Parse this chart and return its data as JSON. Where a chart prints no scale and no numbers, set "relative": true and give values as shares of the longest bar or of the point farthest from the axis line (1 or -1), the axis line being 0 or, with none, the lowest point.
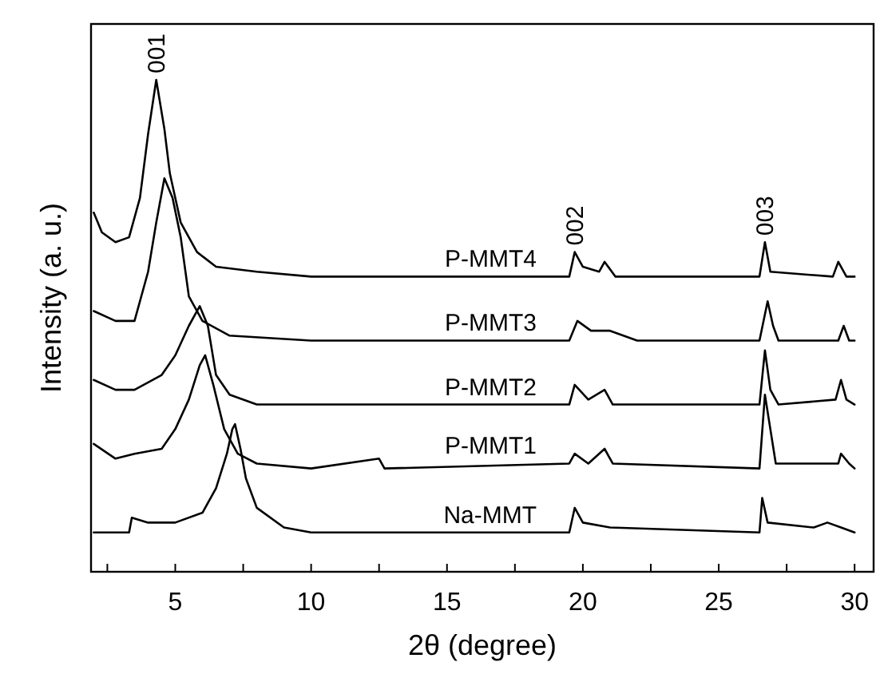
{
  "chart_data": {
    "type": "line",
    "relative": true,
    "xlabel": "2θ (degree)",
    "ylabel": "Intensity (a. u.)",
    "xlim": [
      1.9,
      30.7
    ],
    "xticks": [
      {
        "value": 2.5,
        "label": null
      },
      5,
      {
        "value": 7.5,
        "label": null
      },
      10,
      {
        "value": 12.5,
        "label": null
      },
      15,
      {
        "value": 17.5,
        "label": null
      },
      20,
      {
        "value": 22.5,
        "label": null
      },
      25,
      {
        "value": 27.5,
        "label": null
      },
      30
    ],
    "tick_labels": "x",
    "legend": false,
    "grid": false,
    "marker": "none",
    "line_style": "solid",
    "series": [
      {
        "name": "P-MMT4",
        "color": "#000000",
        "x": [
          2.0,
          2.3,
          2.8,
          3.3,
          3.7,
          4.0,
          4.3,
          4.6,
          4.8,
          5.2,
          5.8,
          6.5,
          8,
          10,
          15,
          19.5,
          19.7,
          20,
          20.6,
          20.8,
          21.2,
          25,
          26.5,
          26.7,
          26.9,
          29.2,
          29.4,
          29.7,
          30
        ],
        "values": [
          0.73,
          0.69,
          0.67,
          0.68,
          0.76,
          0.89,
          1,
          0.9,
          0.81,
          0.71,
          0.65,
          0.62,
          0.61,
          0.6,
          0.6,
          0.6,
          0.65,
          0.62,
          0.61,
          0.63,
          0.6,
          0.6,
          0.6,
          0.67,
          0.61,
          0.6,
          0.63,
          0.6,
          0.6
        ]
      },
      {
        "name": "P-MMT3",
        "color": "#000000",
        "x": [
          2.0,
          2.8,
          3.5,
          4.0,
          4.3,
          4.6,
          4.9,
          5.2,
          5.5,
          6.0,
          7,
          10,
          19.5,
          19.8,
          20.3,
          21,
          22,
          26.5,
          26.8,
          27.0,
          27.2,
          29.4,
          29.6,
          29.8,
          30
        ],
        "values": [
          0.53,
          0.51,
          0.51,
          0.61,
          0.71,
          0.8,
          0.76,
          0.68,
          0.56,
          0.51,
          0.48,
          0.47,
          0.47,
          0.51,
          0.49,
          0.49,
          0.47,
          0.47,
          0.55,
          0.5,
          0.47,
          0.47,
          0.5,
          0.47,
          0.47
        ]
      },
      {
        "name": "P-MMT2",
        "color": "#000000",
        "x": [
          2,
          2.8,
          3.5,
          4.5,
          5.0,
          5.5,
          5.9,
          6.2,
          6.5,
          7,
          8,
          10,
          19.5,
          19.7,
          20.2,
          20.8,
          21.1,
          26.5,
          26.7,
          26.9,
          27.2,
          29.3,
          29.5,
          29.7,
          30
        ],
        "values": [
          0.39,
          0.37,
          0.37,
          0.4,
          0.44,
          0.5,
          0.54,
          0.5,
          0.4,
          0.36,
          0.34,
          0.34,
          0.34,
          0.38,
          0.35,
          0.37,
          0.34,
          0.34,
          0.45,
          0.37,
          0.34,
          0.35,
          0.39,
          0.35,
          0.34
        ]
      },
      {
        "name": "P-MMT1",
        "color": "#000000",
        "x": [
          2,
          2.8,
          3.5,
          4.5,
          5.0,
          5.5,
          5.9,
          6.1,
          6.4,
          6.8,
          7.3,
          8,
          10,
          12.5,
          12.7,
          19.5,
          19.7,
          20.2,
          20.8,
          21.1,
          26.5,
          26.7,
          26.9,
          27.1,
          29.4,
          29.5,
          29.8,
          30
        ],
        "values": [
          0.26,
          0.23,
          0.24,
          0.25,
          0.29,
          0.35,
          0.42,
          0.44,
          0.38,
          0.29,
          0.24,
          0.22,
          0.21,
          0.23,
          0.21,
          0.22,
          0.24,
          0.22,
          0.25,
          0.22,
          0.21,
          0.36,
          0.29,
          0.22,
          0.22,
          0.24,
          0.22,
          0.21
        ]
      },
      {
        "name": "Na-MMT",
        "color": "#000000",
        "x": [
          2,
          3.3,
          3.4,
          4,
          5,
          6.0,
          6.5,
          6.9,
          7.1,
          7.2,
          7.4,
          7.6,
          8,
          9,
          10,
          19.5,
          19.7,
          20,
          21,
          26.5,
          26.6,
          26.8,
          28.5,
          29,
          29.5,
          30
        ],
        "values": [
          0.08,
          0.08,
          0.11,
          0.1,
          0.1,
          0.12,
          0.17,
          0.24,
          0.29,
          0.3,
          0.25,
          0.19,
          0.13,
          0.09,
          0.08,
          0.08,
          0.13,
          0.1,
          0.09,
          0.08,
          0.15,
          0.1,
          0.09,
          0.1,
          0.09,
          0.08
        ]
      }
    ],
    "annotations": [
      {
        "text": "001",
        "x": 4.3,
        "y": 1
      },
      {
        "text": "002",
        "x": 19.7,
        "y": 0.65
      },
      {
        "text": "003",
        "x": 26.7,
        "y": 0.67
      }
    ]
  }
}
